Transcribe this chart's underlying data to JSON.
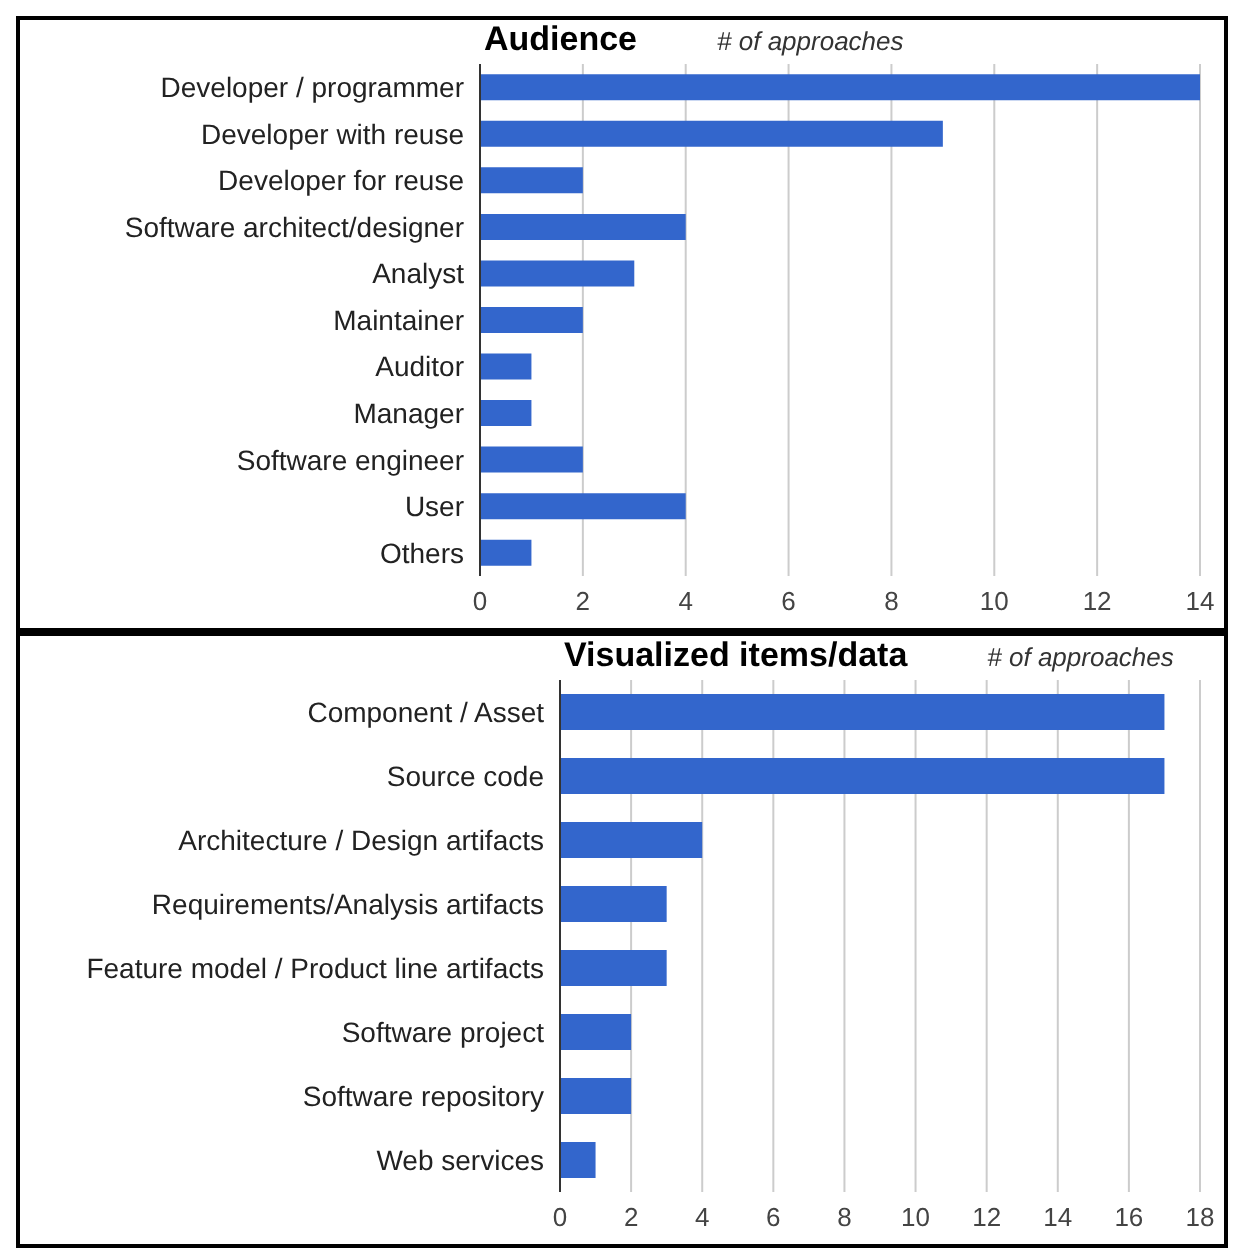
{
  "chart_data": [
    {
      "type": "bar",
      "orientation": "horizontal",
      "title": "Audience",
      "xlabel": "# of approaches",
      "categories": [
        "Developer / programmer",
        "Developer with reuse",
        "Developer for reuse",
        "Software architect/designer",
        "Analyst",
        "Maintainer",
        "Auditor",
        "Manager",
        "Software engineer",
        "User",
        "Others"
      ],
      "values": [
        14,
        9,
        2,
        4,
        3,
        2,
        1,
        1,
        2,
        4,
        1
      ],
      "color": "#3366cc",
      "xlim": [
        0,
        14
      ],
      "xticks": [
        0,
        2,
        4,
        6,
        8,
        10,
        12,
        14
      ],
      "grid": "x",
      "legend": false
    },
    {
      "type": "bar",
      "orientation": "horizontal",
      "title": "Visualized items/data",
      "xlabel": "# of approaches",
      "categories": [
        "Component / Asset",
        "Source code",
        "Architecture / Design artifacts",
        "Requirements/Analysis artifacts",
        "Feature model / Product line artifacts",
        "Software project",
        "Software repository",
        "Web services"
      ],
      "values": [
        17,
        17,
        4,
        3,
        3,
        2,
        2,
        1
      ],
      "color": "#3366cc",
      "xlim": [
        0,
        18
      ],
      "xticks": [
        0,
        2,
        4,
        6,
        8,
        10,
        12,
        14,
        16,
        18
      ],
      "grid": "x",
      "legend": false
    }
  ]
}
